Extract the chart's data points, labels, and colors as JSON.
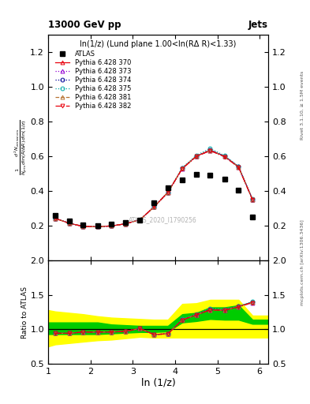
{
  "title_top": "13000 GeV pp",
  "title_right": "Jets",
  "plot_title": "ln(1/z) (Lund plane 1.00<ln(RΔ R)<1.33)",
  "xlabel": "ln (1/z)",
  "ylabel_main": "$\\frac{1}{N_{jets}}\\frac{d^2 N_{emissions}}{d\\ln (R/\\Delta R)\\, d\\ln (1/z)}$",
  "ylabel_ratio": "Ratio to ATLAS",
  "right_label_top": "Rivet 3.1.10, ≥ 1.5M events",
  "right_label_bottom": "mcplots.cern.ch [arXiv:1306.3436]",
  "watermark": "ATLAS_2020_I1790256",
  "atlas_data_x": [
    1.17,
    1.5,
    1.83,
    2.17,
    2.5,
    2.83,
    3.17,
    3.5,
    3.83,
    4.17,
    4.5,
    4.83,
    5.17,
    5.5,
    5.83
  ],
  "atlas_data_y": [
    0.258,
    0.228,
    0.205,
    0.203,
    0.208,
    0.218,
    0.232,
    0.333,
    0.42,
    0.465,
    0.495,
    0.493,
    0.468,
    0.405,
    0.252
  ],
  "mc_x": [
    1.17,
    1.5,
    1.83,
    2.17,
    2.5,
    2.83,
    3.17,
    3.5,
    3.83,
    4.17,
    4.5,
    4.83,
    5.17,
    5.5,
    5.83
  ],
  "mc_370_y": [
    0.243,
    0.215,
    0.197,
    0.195,
    0.2,
    0.212,
    0.235,
    0.308,
    0.392,
    0.53,
    0.6,
    0.635,
    0.6,
    0.54,
    0.352
  ],
  "mc_373_y": [
    0.243,
    0.215,
    0.197,
    0.195,
    0.2,
    0.212,
    0.235,
    0.308,
    0.392,
    0.529,
    0.598,
    0.632,
    0.598,
    0.538,
    0.35
  ],
  "mc_374_y": [
    0.243,
    0.215,
    0.197,
    0.195,
    0.2,
    0.212,
    0.235,
    0.308,
    0.392,
    0.53,
    0.6,
    0.636,
    0.6,
    0.54,
    0.352
  ],
  "mc_375_y": [
    0.243,
    0.215,
    0.197,
    0.195,
    0.2,
    0.212,
    0.235,
    0.308,
    0.392,
    0.534,
    0.605,
    0.644,
    0.604,
    0.542,
    0.354
  ],
  "mc_381_y": [
    0.243,
    0.215,
    0.197,
    0.195,
    0.2,
    0.212,
    0.235,
    0.308,
    0.392,
    0.53,
    0.599,
    0.633,
    0.598,
    0.538,
    0.351
  ],
  "mc_382_y": [
    0.243,
    0.215,
    0.197,
    0.195,
    0.2,
    0.212,
    0.235,
    0.308,
    0.392,
    0.528,
    0.598,
    0.632,
    0.597,
    0.537,
    0.35
  ],
  "ratio_370_y": [
    0.942,
    0.942,
    0.961,
    0.96,
    0.961,
    0.971,
    1.012,
    0.924,
    0.934,
    1.139,
    1.212,
    1.288,
    1.282,
    1.333,
    1.396
  ],
  "ratio_373_y": [
    0.942,
    0.942,
    0.961,
    0.96,
    0.961,
    0.971,
    1.012,
    0.924,
    0.934,
    1.137,
    1.208,
    1.282,
    1.278,
    1.328,
    1.389
  ],
  "ratio_374_y": [
    0.942,
    0.942,
    0.961,
    0.96,
    0.961,
    0.971,
    1.012,
    0.924,
    0.934,
    1.139,
    1.212,
    1.29,
    1.282,
    1.333,
    1.396
  ],
  "ratio_375_y": [
    0.942,
    0.942,
    0.961,
    0.96,
    0.961,
    0.971,
    1.012,
    0.924,
    0.934,
    1.148,
    1.222,
    1.307,
    1.291,
    1.338,
    1.405
  ],
  "ratio_381_y": [
    0.942,
    0.942,
    0.961,
    0.96,
    0.961,
    0.971,
    1.012,
    0.924,
    0.934,
    1.139,
    1.21,
    1.284,
    1.278,
    1.328,
    1.393
  ],
  "ratio_382_y": [
    0.942,
    0.942,
    0.961,
    0.96,
    0.961,
    0.971,
    1.012,
    0.924,
    0.934,
    1.135,
    1.208,
    1.282,
    1.276,
    1.326,
    1.389
  ],
  "green_band_x": [
    1.0,
    1.17,
    1.5,
    1.83,
    2.17,
    2.5,
    2.83,
    3.17,
    3.5,
    3.83,
    4.17,
    4.5,
    4.83,
    5.17,
    5.5,
    5.83,
    6.2
  ],
  "green_band_lo": [
    0.93,
    0.93,
    0.93,
    0.93,
    0.93,
    0.94,
    0.95,
    0.96,
    0.96,
    0.97,
    1.1,
    1.12,
    1.15,
    1.14,
    1.14,
    1.08,
    1.08
  ],
  "green_band_hi": [
    1.1,
    1.1,
    1.1,
    1.1,
    1.1,
    1.07,
    1.06,
    1.05,
    1.05,
    1.05,
    1.22,
    1.24,
    1.32,
    1.32,
    1.35,
    1.14,
    1.14
  ],
  "yellow_band_lo": [
    0.75,
    0.78,
    0.8,
    0.82,
    0.84,
    0.85,
    0.87,
    0.89,
    0.88,
    0.88,
    0.88,
    0.88,
    0.88,
    0.88,
    0.88,
    0.88,
    0.88
  ],
  "yellow_band_hi": [
    1.28,
    1.26,
    1.24,
    1.22,
    1.19,
    1.17,
    1.16,
    1.15,
    1.14,
    1.14,
    1.37,
    1.38,
    1.43,
    1.43,
    1.43,
    1.2,
    1.2
  ],
  "color_370": "#e8000b",
  "color_373": "#9400d3",
  "color_374": "#000099",
  "color_375": "#00aaaa",
  "color_381": "#b87333",
  "color_382": "#e8000b",
  "ylim_main": [
    0.0,
    1.3
  ],
  "ylim_ratio": [
    0.5,
    2.0
  ],
  "xlim": [
    1.0,
    6.2
  ],
  "yticks_main": [
    0.2,
    0.4,
    0.6,
    0.8,
    1.0,
    1.2
  ],
  "yticks_ratio": [
    0.5,
    1.0,
    1.5,
    2.0
  ],
  "xticks": [
    1,
    2,
    3,
    4,
    5,
    6
  ]
}
